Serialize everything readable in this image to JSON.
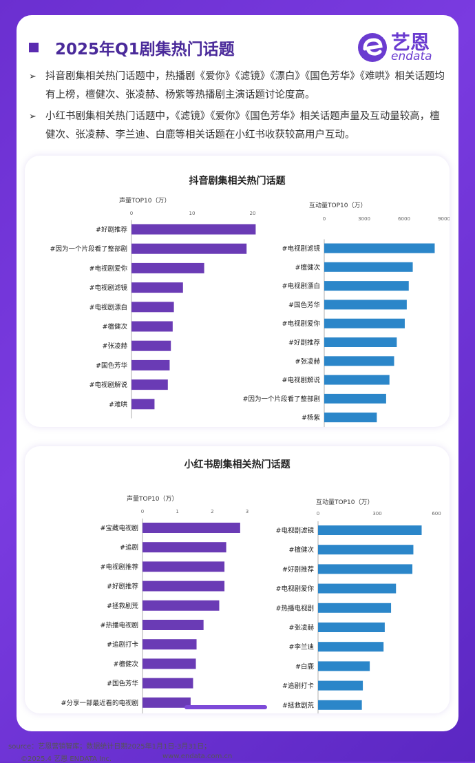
{
  "header": {
    "title": "2025年Q1剧集热门话题",
    "logo_name": "艺恩",
    "logo_sub": "endata"
  },
  "bullets": [
    "抖音剧集相关热门话题中，热播剧《爱你》《滤镜》《漂白》《国色芳华》《难哄》相关话题均有上榜，檀健次、张凌赫、杨紫等热播剧主演话题讨论度高。",
    "小红书剧集相关热门话题中，《滤镜》《爱你》《国色芳华》相关话题声量及互动量较高，檀健次、张凌赫、李兰迪、白鹿等相关话题在小红书收获较高用户互动。"
  ],
  "footer": {
    "source": "source：艺恩营销智库；数据统计日期2025年1月1日-3月31日；",
    "copyright": "©2025.4 艺恩 ENDATA Inc.",
    "website": "www.endata.com.cn"
  },
  "colors": {
    "purple": "#6a3bb5",
    "blue": "#2b86c9"
  },
  "chart_data": [
    {
      "type": "bar",
      "panel_title": "抖音剧集相关热门话题",
      "title": "声量TOP10（万）",
      "orientation": "horizontal",
      "categories": [
        "#好剧推荐",
        "#因为一个片段看了整部剧",
        "#电视剧爱你",
        "#电视剧滤镜",
        "#电视剧漂白",
        "#檀健次",
        "#张凌赫",
        "#国色芳华",
        "#电视剧解说",
        "#难哄"
      ],
      "values": [
        20.5,
        19.0,
        12.0,
        8.5,
        7.0,
        6.8,
        6.5,
        6.3,
        6.0,
        3.8
      ],
      "xlim": [
        0,
        20
      ],
      "ticks": [
        0,
        10,
        20
      ],
      "color": "#6a3bb5"
    },
    {
      "type": "bar",
      "panel_title": "抖音剧集相关热门话题",
      "title": "互动量TOP10（万）",
      "orientation": "horizontal",
      "categories": [
        "#电视剧滤镜",
        "#檀健次",
        "#电视剧漂白",
        "#国色芳华",
        "#电视剧爱你",
        "#好剧推荐",
        "#张凌赫",
        "#电视剧解说",
        "#因为一个片段看了整部剧",
        "#杨紫"
      ],
      "values": [
        8300,
        6650,
        6350,
        6200,
        6050,
        5450,
        5250,
        4900,
        4650,
        3950
      ],
      "xlim": [
        0,
        9000
      ],
      "ticks": [
        0,
        3000,
        6000,
        9000
      ],
      "color": "#2b86c9"
    },
    {
      "type": "bar",
      "panel_title": "小红书剧集相关热门话题",
      "title": "声量TOP10（万）",
      "orientation": "horizontal",
      "categories": [
        "#宝藏电视剧",
        "#追剧",
        "#电视剧推荐",
        "#好剧推荐",
        "#拯救剧荒",
        "#热播电视剧",
        "#追剧打卡",
        "#檀健次",
        "#国色芳华",
        "#分享一部最近看的电视剧"
      ],
      "values": [
        2.8,
        2.4,
        2.35,
        2.35,
        2.2,
        1.75,
        1.55,
        1.53,
        1.45,
        1.38
      ],
      "xlim": [
        0,
        3
      ],
      "ticks": [
        0,
        1,
        2,
        3
      ],
      "color": "#6a3bb5"
    },
    {
      "type": "bar",
      "panel_title": "小红书剧集相关热门话题",
      "title": "互动量TOP10（万）",
      "orientation": "horizontal",
      "categories": [
        "#电视剧滤镜",
        "#檀健次",
        "#好剧推荐",
        "#电视剧爱你",
        "#热播电视剧",
        "#张凌赫",
        "#李兰迪",
        "#白鹿",
        "#追剧打卡",
        "#拯救剧荒"
      ],
      "values": [
        525,
        483,
        478,
        395,
        370,
        338,
        332,
        262,
        227,
        222
      ],
      "xlim": [
        0,
        600
      ],
      "ticks": [
        0,
        300,
        600
      ],
      "color": "#2b86c9"
    }
  ]
}
